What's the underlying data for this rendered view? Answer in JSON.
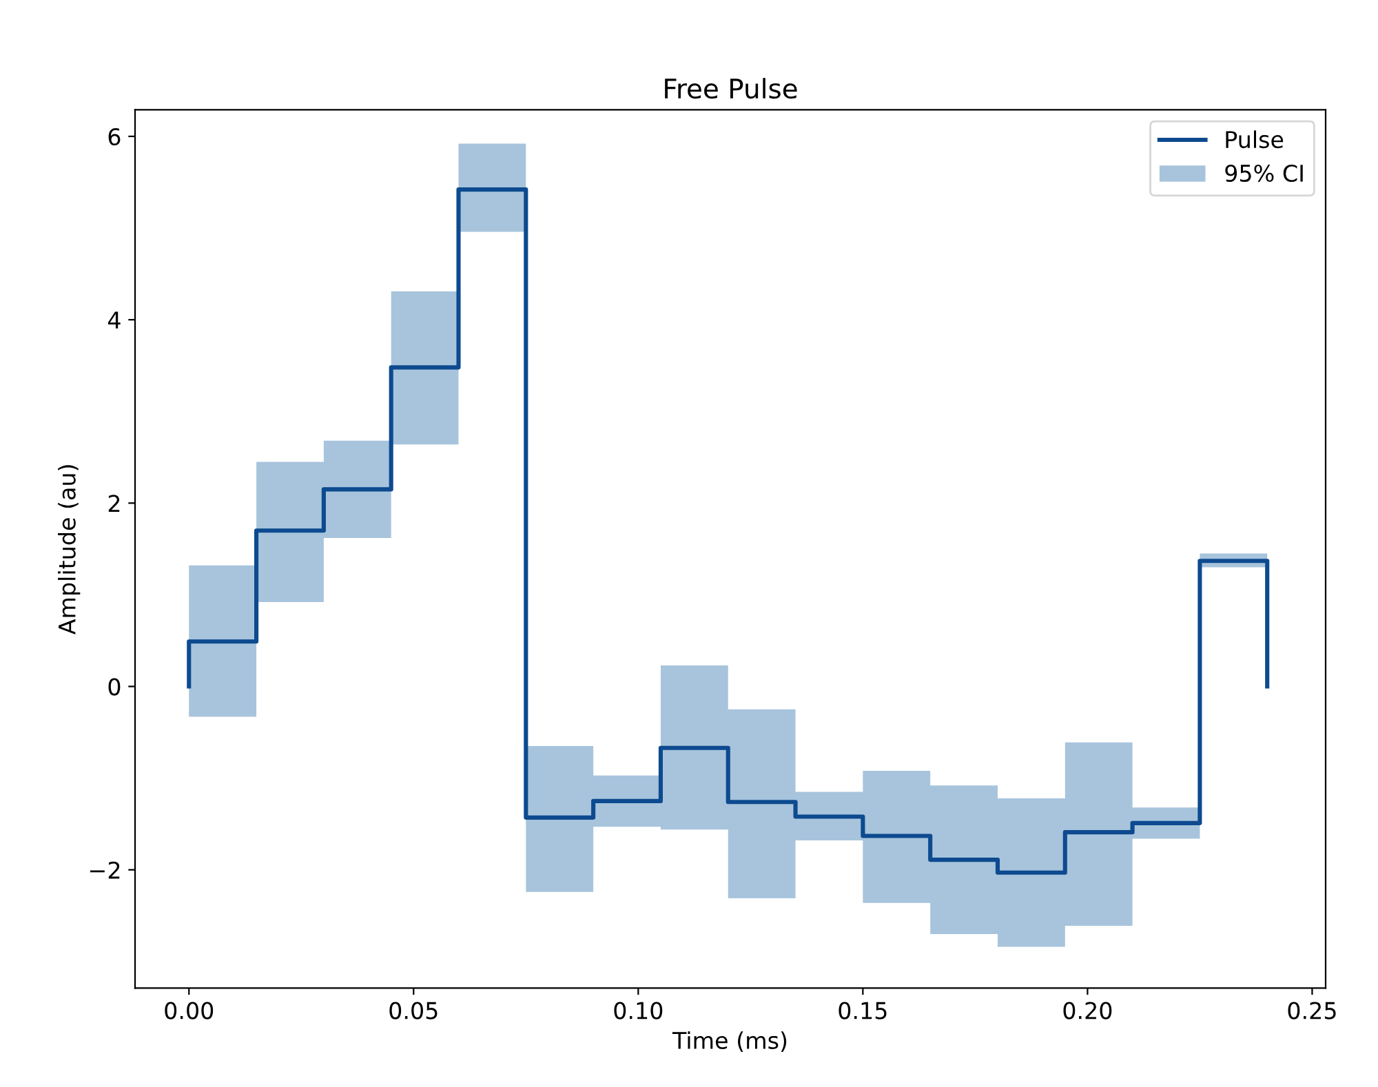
{
  "chart_data": {
    "type": "step",
    "title": "Free Pulse",
    "xlabel": "Time (ms)",
    "ylabel": "Amplitude (au)",
    "series": [
      {
        "name": "Pulse",
        "type": "step",
        "color": "#0d4a8f",
        "x": [
          0,
          0,
          0.015,
          0.03,
          0.045,
          0.06,
          0.075,
          0.09,
          0.105,
          0.12,
          0.135,
          0.15,
          0.165,
          0.18,
          0.195,
          0.21,
          0.225,
          0.24
        ],
        "values": [
          0,
          0.49,
          1.7,
          2.15,
          3.48,
          5.42,
          -1.43,
          -1.25,
          -0.67,
          -1.26,
          -1.42,
          -1.63,
          -1.89,
          -2.03,
          -1.59,
          -1.49,
          1.37,
          0
        ]
      },
      {
        "name": "95% CI",
        "type": "area",
        "color": "#a7c4dc",
        "x": [
          0,
          0.015,
          0.015,
          0.03,
          0.03,
          0.045,
          0.045,
          0.06,
          0.06,
          0.075,
          0.075,
          0.09,
          0.09,
          0.105,
          0.105,
          0.12,
          0.12,
          0.135,
          0.135,
          0.15,
          0.15,
          0.165,
          0.165,
          0.18,
          0.18,
          0.195,
          0.195,
          0.21,
          0.21,
          0.225,
          0.225,
          0.24
        ],
        "values": [
          null,
          null,
          null,
          null,
          null,
          null,
          null,
          null,
          null,
          null,
          null,
          null,
          null,
          null,
          null,
          null,
          null,
          null,
          null,
          null,
          null,
          null,
          null,
          null,
          null,
          null,
          null,
          null,
          null,
          null,
          null,
          null
        ],
        "lower": [
          -0.33,
          -0.33,
          0.92,
          0.92,
          1.62,
          1.62,
          2.64,
          2.64,
          4.96,
          4.96,
          -2.24,
          -2.24,
          -1.53,
          -1.53,
          -1.56,
          -1.56,
          -2.31,
          -2.31,
          -1.68,
          -1.68,
          -2.36,
          -2.36,
          -2.7,
          -2.7,
          -2.84,
          -2.84,
          -2.61,
          -2.61,
          -1.66,
          -1.66,
          1.3,
          1.3
        ],
        "upper": [
          1.32,
          1.32,
          2.45,
          2.45,
          2.68,
          2.68,
          4.31,
          4.31,
          5.92,
          5.92,
          -0.65,
          -0.65,
          -0.97,
          -0.97,
          0.23,
          0.23,
          -0.25,
          -0.25,
          -1.15,
          -1.15,
          -0.92,
          -0.92,
          -1.08,
          -1.08,
          -1.22,
          -1.22,
          -0.61,
          -0.61,
          -1.32,
          -1.32,
          1.45,
          1.45
        ]
      }
    ],
    "xlim": [
      -0.012,
      0.253
    ],
    "xticks": [
      {
        "value": 0,
        "label": "0.00"
      },
      0.05,
      {
        "value": 0.1,
        "label": "0.10"
      },
      0.15,
      {
        "value": 0.2,
        "label": "0.20"
      },
      0.25
    ],
    "ylim": [
      -3.29,
      6.29
    ],
    "yticks": [
      {
        "value": -2,
        "label": "−2"
      },
      0,
      2,
      4,
      6
    ],
    "grid": false,
    "legend": "top right"
  }
}
